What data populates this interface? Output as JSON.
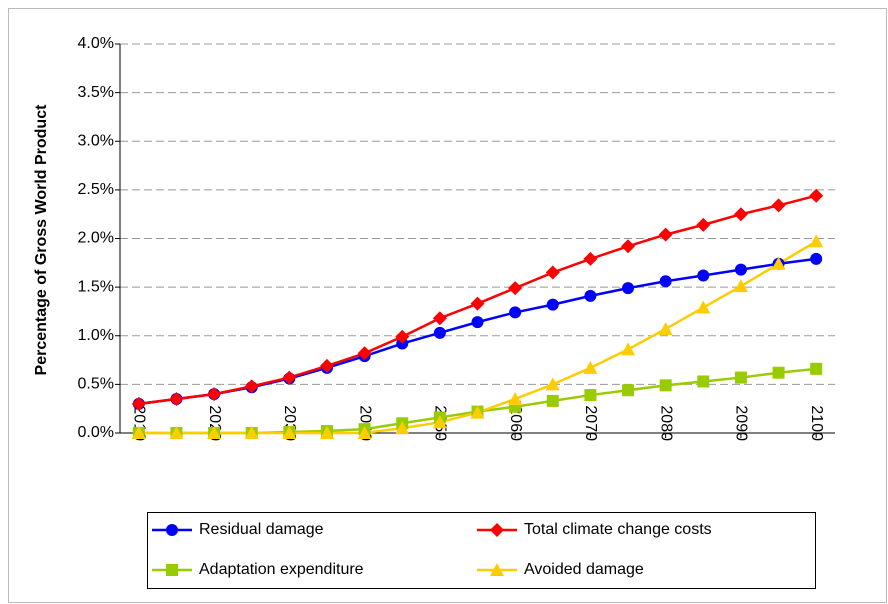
{
  "chart_data": {
    "type": "line",
    "y_label": "Percentage of Gross World Product",
    "x": [
      2010,
      2015,
      2020,
      2025,
      2030,
      2035,
      2040,
      2045,
      2050,
      2055,
      2060,
      2065,
      2070,
      2075,
      2080,
      2085,
      2090,
      2095,
      2100
    ],
    "xlim": [
      2007.5,
      2102.5
    ],
    "xticks": [
      2010,
      2020,
      2030,
      2040,
      2050,
      2060,
      2070,
      2080,
      2090,
      2100
    ],
    "ylim": [
      0,
      4
    ],
    "yticks": [
      {
        "value": 0,
        "label": "0.0%"
      },
      {
        "value": 0.5,
        "label": "0.5%"
      },
      {
        "value": 1,
        "label": "1.0%"
      },
      {
        "value": 1.5,
        "label": "1.5%"
      },
      {
        "value": 2,
        "label": "2.0%"
      },
      {
        "value": 2.5,
        "label": "2.5%"
      },
      {
        "value": 3,
        "label": "3.0%"
      },
      {
        "value": 3.5,
        "label": "3.5%"
      },
      {
        "value": 4,
        "label": "4.0%"
      }
    ],
    "grid": true,
    "legend": "bottom",
    "series": [
      {
        "name": "Residual damage",
        "color": "#0000ff",
        "marker": "circle",
        "values": [
          0.3,
          0.35,
          0.4,
          0.47,
          0.56,
          0.67,
          0.79,
          0.92,
          1.03,
          1.14,
          1.24,
          1.32,
          1.41,
          1.49,
          1.56,
          1.62,
          1.68,
          1.74,
          1.79
        ]
      },
      {
        "name": "Total climate change costs",
        "color": "#ff0000",
        "marker": "diamond",
        "values": [
          0.3,
          0.35,
          0.4,
          0.48,
          0.57,
          0.69,
          0.82,
          0.99,
          1.18,
          1.33,
          1.49,
          1.65,
          1.79,
          1.92,
          2.04,
          2.14,
          2.25,
          2.34,
          2.44
        ]
      },
      {
        "name": "Adaptation expenditure",
        "color": "#99cc00",
        "marker": "square",
        "values": [
          0,
          0,
          0,
          0,
          0.01,
          0.02,
          0.04,
          0.1,
          0.16,
          0.22,
          0.27,
          0.33,
          0.39,
          0.44,
          0.49,
          0.53,
          0.57,
          0.62,
          0.66
        ]
      },
      {
        "name": "Avoided damage",
        "color": "#ffcc00",
        "marker": "triangle",
        "values": [
          0,
          0,
          0,
          0,
          0,
          0,
          0,
          0.05,
          0.11,
          0.21,
          0.35,
          0.5,
          0.67,
          0.86,
          1.07,
          1.29,
          1.51,
          1.74,
          1.97
        ]
      }
    ]
  }
}
